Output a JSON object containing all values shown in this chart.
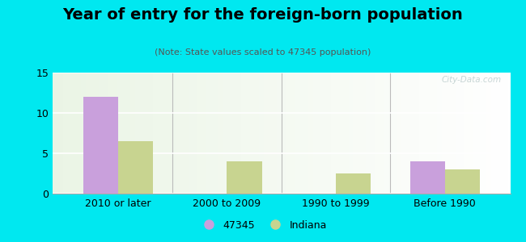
{
  "title": "Year of entry for the foreign-born population",
  "subtitle": "(Note: State values scaled to 47345 population)",
  "categories": [
    "2010 or later",
    "2000 to 2009",
    "1990 to 1999",
    "Before 1990"
  ],
  "values_47345": [
    12,
    0,
    0,
    4
  ],
  "values_indiana": [
    6.5,
    4,
    2.5,
    3
  ],
  "color_47345": "#c9a0dc",
  "color_indiana": "#c8d490",
  "background_outer": "#00e8f0",
  "background_inner": "#eef5e8",
  "ylim": [
    0,
    15
  ],
  "yticks": [
    0,
    5,
    10,
    15
  ],
  "bar_width": 0.32,
  "legend_label_47345": "47345",
  "legend_label_indiana": "Indiana",
  "watermark": "City-Data.com",
  "title_fontsize": 14,
  "subtitle_fontsize": 8,
  "tick_fontsize": 9
}
